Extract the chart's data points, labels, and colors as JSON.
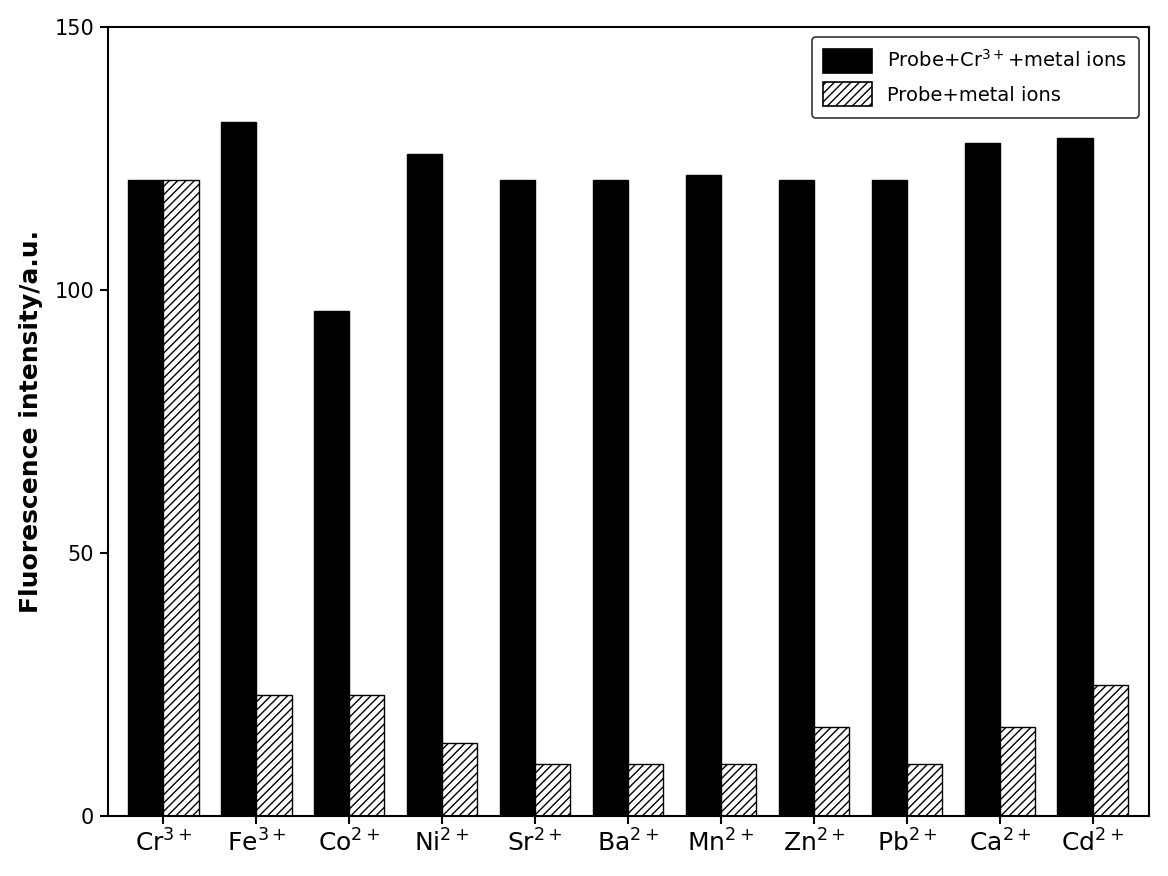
{
  "categories": [
    "Cr",
    "Fe",
    "Co",
    "Ni",
    "Sr",
    "Ba",
    "Mn",
    "Zn",
    "Pb",
    "Ca",
    "Cd"
  ],
  "superscripts": [
    "3+",
    "3+",
    "2+",
    "2+",
    "2+",
    "2+",
    "2+",
    "2+",
    "2+",
    "2+",
    "2+"
  ],
  "series1_values": [
    121,
    132,
    96,
    126,
    121,
    121,
    122,
    121,
    121,
    128,
    129
  ],
  "series2_values": [
    121,
    23,
    23,
    14,
    10,
    10,
    10,
    17,
    10,
    17,
    25
  ],
  "series1_label": "Probe+Cr$^{3+}$+metal ions",
  "series2_label": "Probe+metal ions",
  "ylabel": "Fluorescence intensity/a.u.",
  "ylim": [
    0,
    150
  ],
  "yticks": [
    0,
    50,
    100,
    150
  ],
  "bar_width": 0.38,
  "series1_color": "#000000",
  "series2_color": "#ffffff",
  "series2_hatch": "////",
  "figsize": [
    11.68,
    8.76
  ],
  "dpi": 100,
  "legend_fontsize": 14,
  "axis_fontsize": 18,
  "tick_fontsize": 15
}
